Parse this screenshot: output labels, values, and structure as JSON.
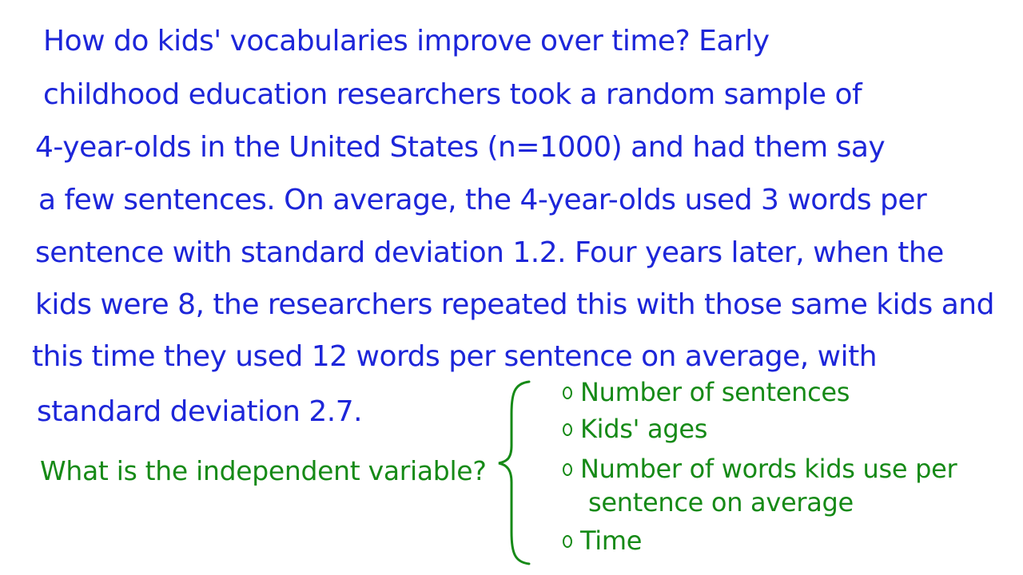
{
  "problem": {
    "lines": [
      "How do kids' vocabularies improve over time?  Early",
      "childhood education researchers took a random sample of",
      "4-year-olds in the United States  (n=1000)  and had them say",
      "a few sentences. On average, the 4-year-olds used 3 words per",
      "sentence  with standard deviation  1.2.  Four years later, when the",
      "kids were 8, the researchers repeated this with those same kids and",
      "this time they used 12 words per sentence on average, with",
      "standard deviation 2.7."
    ]
  },
  "question": {
    "text": "What is the independent variable?"
  },
  "options": [
    {
      "text": "Number of sentences"
    },
    {
      "text": "Kids' ages"
    },
    {
      "text": "Number of words kids use per",
      "continuation": "sentence on average"
    },
    {
      "text": "Time"
    }
  ],
  "colors": {
    "problem_ink": "#1d26d9",
    "answer_ink": "#168a17",
    "background": "#ffffff"
  }
}
